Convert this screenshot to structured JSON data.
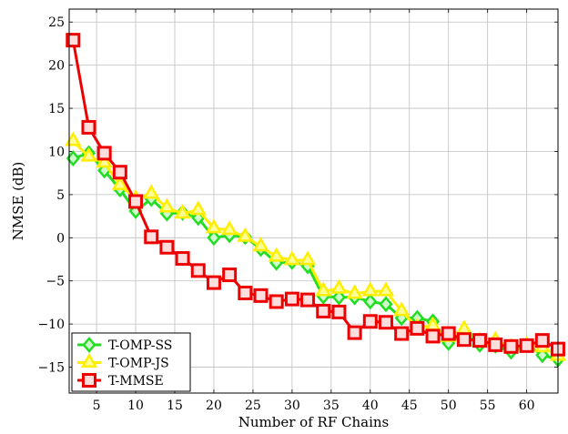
{
  "chart_data": {
    "type": "line",
    "title": "",
    "xlabel": "Number of RF Chains",
    "ylabel": "NMSE (dB)",
    "xlim": [
      1.5,
      64
    ],
    "ylim": [
      -18,
      26.5
    ],
    "xticks": [
      5,
      10,
      15,
      20,
      25,
      30,
      35,
      40,
      45,
      50,
      55,
      60
    ],
    "yticks": [
      -15,
      -10,
      -5,
      0,
      5,
      10,
      15,
      20,
      25
    ],
    "xtick_labels": [
      "5",
      "10",
      "15",
      "20",
      "25",
      "30",
      "35",
      "40",
      "45",
      "50",
      "55",
      "60"
    ],
    "ytick_labels": [
      "−15",
      "−10",
      "−5",
      "0",
      "5",
      "10",
      "15",
      "20",
      "25"
    ],
    "grid": true,
    "legend_position": "bottom-left",
    "x": [
      2,
      4,
      6,
      8,
      10,
      12,
      14,
      16,
      18,
      20,
      22,
      24,
      26,
      28,
      30,
      32,
      34,
      36,
      38,
      40,
      42,
      44,
      46,
      48,
      50,
      52,
      54,
      56,
      58,
      60,
      62,
      64
    ],
    "series": [
      {
        "name": "T-OMP-SS",
        "color": "#22dd22",
        "marker": "diamond",
        "values": [
          9.2,
          9.8,
          7.8,
          5.6,
          3.1,
          4.5,
          2.8,
          2.9,
          2.3,
          0.0,
          0.3,
          0.1,
          -1.3,
          -2.9,
          -2.8,
          -3.3,
          -6.8,
          -6.9,
          -6.9,
          -7.4,
          -7.7,
          -9.3,
          -9.3,
          -9.7,
          -12.2,
          -11.2,
          -12.4,
          -12.5,
          -13.2,
          -12.4,
          -13.6,
          -14.1
        ]
      },
      {
        "name": "T-OMP-JS",
        "color": "#ffee00",
        "marker": "triangle",
        "values": [
          11.2,
          9.4,
          8.7,
          6.1,
          4.5,
          5.1,
          3.5,
          2.8,
          3.2,
          1.1,
          0.9,
          0.1,
          -1.0,
          -2.2,
          -2.6,
          -2.6,
          -6.2,
          -5.9,
          -6.5,
          -6.2,
          -6.2,
          -8.5,
          -10.4,
          -10.2,
          -11.5,
          -10.6,
          -12.0,
          -11.9,
          -12.7,
          -12.5,
          -12.7,
          -13.7
        ]
      },
      {
        "name": "T-MMSE",
        "color": "#ee0000",
        "marker": "square",
        "values": [
          22.9,
          12.8,
          9.8,
          7.6,
          4.2,
          0.1,
          -1.1,
          -2.4,
          -3.8,
          -5.2,
          -4.3,
          -6.4,
          -6.7,
          -7.4,
          -7.1,
          -7.2,
          -8.5,
          -8.6,
          -11.0,
          -9.7,
          -9.8,
          -11.1,
          -10.5,
          -11.4,
          -11.1,
          -11.8,
          -11.9,
          -12.4,
          -12.6,
          -12.5,
          -11.9,
          -12.9
        ]
      }
    ]
  }
}
